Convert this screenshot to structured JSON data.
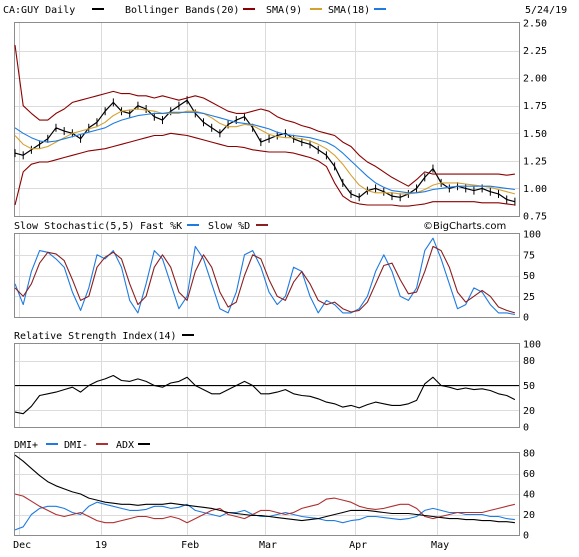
{
  "header": {
    "symbol": "CA:GUY Daily",
    "bb_label": "Bollinger Bands(20)",
    "sma9_label": "SMA(9)",
    "sma18_label": "SMA(18)",
    "date": "5/24/19"
  },
  "colors": {
    "price": "#000000",
    "bollinger": "#8b0000",
    "sma9": "#d4a030",
    "sma18": "#1e7be0",
    "fast": "#1e7be0",
    "slow": "#8b2020",
    "rsi": "#000000",
    "dmi_plus": "#1e7be0",
    "dmi_minus": "#b03030",
    "adx": "#000000"
  },
  "x_axis": {
    "labels": [
      "Dec",
      "19",
      "Feb",
      "Mar",
      "Apr",
      "May"
    ],
    "label_days": [
      1,
      21,
      42,
      61,
      83,
      103
    ]
  },
  "watermark": "©BigCharts.com",
  "chart_data": [
    {
      "type": "line",
      "panel": "price",
      "ylim": [
        0.75,
        2.5
      ],
      "yticks": [
        "2.50",
        "2.25",
        "2.00",
        "1.75",
        "1.50",
        "1.25",
        "1.00",
        "0.75"
      ],
      "ytick_values": [
        2.5,
        2.25,
        2.0,
        1.75,
        1.5,
        1.25,
        1.0,
        0.75
      ],
      "x": [
        0,
        2,
        4,
        6,
        8,
        10,
        12,
        14,
        16,
        18,
        20,
        22,
        24,
        26,
        28,
        30,
        32,
        34,
        36,
        38,
        40,
        42,
        44,
        46,
        48,
        50,
        52,
        54,
        56,
        58,
        60,
        62,
        64,
        66,
        68,
        70,
        72,
        74,
        76,
        78,
        80,
        82,
        84,
        86,
        88,
        90,
        92,
        94,
        96,
        98,
        100,
        102,
        104,
        106,
        108,
        110,
        112,
        114,
        116,
        118,
        120,
        122
      ],
      "series": [
        {
          "name": "CA:GUY Daily",
          "values": [
            1.32,
            1.3,
            1.35,
            1.4,
            1.45,
            1.55,
            1.52,
            1.5,
            1.45,
            1.55,
            1.6,
            1.7,
            1.78,
            1.7,
            1.68,
            1.75,
            1.72,
            1.65,
            1.62,
            1.7,
            1.75,
            1.8,
            1.68,
            1.6,
            1.55,
            1.5,
            1.58,
            1.62,
            1.65,
            1.55,
            1.42,
            1.45,
            1.48,
            1.5,
            1.45,
            1.42,
            1.4,
            1.35,
            1.3,
            1.2,
            1.05,
            0.95,
            0.92,
            0.98,
            1.0,
            0.97,
            0.93,
            0.92,
            0.95,
            1.0,
            1.1,
            1.18,
            1.05,
            1.0,
            1.02,
            1.0,
            0.98,
            1.0,
            0.97,
            0.95,
            0.9,
            0.88
          ]
        },
        {
          "name": "Bollinger Upper",
          "values": [
            2.3,
            1.75,
            1.68,
            1.62,
            1.62,
            1.68,
            1.72,
            1.78,
            1.8,
            1.82,
            1.84,
            1.86,
            1.88,
            1.86,
            1.86,
            1.84,
            1.84,
            1.82,
            1.84,
            1.82,
            1.8,
            1.82,
            1.84,
            1.82,
            1.78,
            1.74,
            1.7,
            1.68,
            1.68,
            1.7,
            1.72,
            1.7,
            1.65,
            1.62,
            1.6,
            1.57,
            1.55,
            1.52,
            1.5,
            1.48,
            1.42,
            1.38,
            1.3,
            1.24,
            1.2,
            1.15,
            1.1,
            1.06,
            1.02,
            1.08,
            1.15,
            1.13,
            1.13,
            1.13,
            1.13,
            1.13,
            1.13,
            1.13,
            1.13,
            1.13,
            1.12,
            1.13
          ]
        },
        {
          "name": "Bollinger Lower",
          "values": [
            0.85,
            1.15,
            1.22,
            1.24,
            1.24,
            1.26,
            1.28,
            1.3,
            1.32,
            1.34,
            1.35,
            1.36,
            1.38,
            1.4,
            1.42,
            1.44,
            1.46,
            1.48,
            1.48,
            1.5,
            1.49,
            1.48,
            1.46,
            1.44,
            1.42,
            1.4,
            1.38,
            1.38,
            1.37,
            1.35,
            1.34,
            1.33,
            1.33,
            1.33,
            1.32,
            1.3,
            1.28,
            1.25,
            1.2,
            1.05,
            0.93,
            0.88,
            0.86,
            0.85,
            0.85,
            0.85,
            0.85,
            0.84,
            0.84,
            0.85,
            0.86,
            0.88,
            0.88,
            0.88,
            0.88,
            0.88,
            0.88,
            0.87,
            0.87,
            0.87,
            0.86,
            0.85
          ]
        },
        {
          "name": "SMA(9)",
          "values": [
            1.48,
            1.4,
            1.36,
            1.36,
            1.38,
            1.42,
            1.46,
            1.5,
            1.52,
            1.54,
            1.56,
            1.6,
            1.66,
            1.7,
            1.71,
            1.72,
            1.71,
            1.7,
            1.68,
            1.68,
            1.68,
            1.7,
            1.7,
            1.68,
            1.64,
            1.59,
            1.56,
            1.56,
            1.58,
            1.57,
            1.53,
            1.49,
            1.47,
            1.46,
            1.46,
            1.45,
            1.43,
            1.4,
            1.36,
            1.3,
            1.22,
            1.12,
            1.03,
            0.98,
            0.96,
            0.96,
            0.96,
            0.95,
            0.95,
            0.96,
            0.99,
            1.03,
            1.05,
            1.05,
            1.05,
            1.04,
            1.03,
            1.02,
            1.01,
            0.99,
            0.97,
            0.95
          ]
        },
        {
          "name": "SMA(18)",
          "values": [
            1.55,
            1.5,
            1.46,
            1.43,
            1.42,
            1.43,
            1.45,
            1.47,
            1.49,
            1.51,
            1.53,
            1.55,
            1.59,
            1.62,
            1.64,
            1.66,
            1.67,
            1.68,
            1.68,
            1.69,
            1.69,
            1.69,
            1.69,
            1.68,
            1.66,
            1.64,
            1.62,
            1.6,
            1.59,
            1.58,
            1.56,
            1.54,
            1.51,
            1.49,
            1.48,
            1.47,
            1.46,
            1.44,
            1.42,
            1.38,
            1.32,
            1.25,
            1.18,
            1.11,
            1.05,
            1.01,
            0.98,
            0.97,
            0.96,
            0.96,
            0.97,
            0.99,
            1.0,
            1.01,
            1.02,
            1.02,
            1.02,
            1.02,
            1.02,
            1.01,
            1.0,
            0.99
          ]
        }
      ]
    },
    {
      "type": "line",
      "panel": "stochastic",
      "title": "Slow Stochastic(5,5)",
      "legend": [
        "Fast %K",
        "Slow %D"
      ],
      "ylim": [
        0,
        100
      ],
      "yticks": [
        "100",
        "75",
        "50",
        "25",
        "0"
      ],
      "ytick_values": [
        100,
        75,
        50,
        25,
        0
      ],
      "x": [
        0,
        2,
        4,
        6,
        8,
        10,
        12,
        14,
        16,
        18,
        20,
        22,
        24,
        26,
        28,
        30,
        32,
        34,
        36,
        38,
        40,
        42,
        44,
        46,
        48,
        50,
        52,
        54,
        56,
        58,
        60,
        62,
        64,
        66,
        68,
        70,
        72,
        74,
        76,
        78,
        80,
        82,
        84,
        86,
        88,
        90,
        92,
        94,
        96,
        98,
        100,
        102,
        104,
        106,
        108,
        110,
        112,
        114,
        116,
        118,
        120,
        122
      ],
      "series": [
        {
          "name": "Fast %K",
          "values": [
            40,
            15,
            55,
            80,
            78,
            70,
            60,
            30,
            8,
            35,
            75,
            70,
            80,
            60,
            20,
            5,
            40,
            80,
            70,
            40,
            10,
            25,
            85,
            70,
            40,
            10,
            5,
            30,
            75,
            80,
            60,
            30,
            15,
            25,
            60,
            55,
            25,
            5,
            20,
            15,
            5,
            5,
            10,
            25,
            55,
            75,
            55,
            25,
            20,
            35,
            80,
            95,
            70,
            40,
            10,
            15,
            35,
            30,
            15,
            5,
            5,
            3
          ]
        },
        {
          "name": "Slow %D",
          "values": [
            35,
            25,
            40,
            65,
            78,
            76,
            68,
            45,
            20,
            25,
            60,
            72,
            78,
            70,
            40,
            15,
            25,
            60,
            75,
            60,
            30,
            20,
            55,
            75,
            60,
            30,
            12,
            18,
            50,
            75,
            70,
            45,
            25,
            20,
            42,
            55,
            40,
            20,
            15,
            18,
            10,
            6,
            8,
            18,
            40,
            62,
            65,
            45,
            28,
            30,
            55,
            85,
            80,
            60,
            30,
            18,
            25,
            32,
            25,
            12,
            8,
            5
          ]
        }
      ]
    },
    {
      "type": "line",
      "panel": "rsi",
      "title": "Relative Strength Index(14)",
      "ylim": [
        0,
        100
      ],
      "yticks": [
        "100",
        "80",
        "50",
        "20",
        "0"
      ],
      "ytick_values": [
        100,
        80,
        50,
        20,
        0
      ],
      "reference_line": 50,
      "x": [
        0,
        2,
        4,
        6,
        8,
        10,
        12,
        14,
        16,
        18,
        20,
        22,
        24,
        26,
        28,
        30,
        32,
        34,
        36,
        38,
        40,
        42,
        44,
        46,
        48,
        50,
        52,
        54,
        56,
        58,
        60,
        62,
        64,
        66,
        68,
        70,
        72,
        74,
        76,
        78,
        80,
        82,
        84,
        86,
        88,
        90,
        92,
        94,
        96,
        98,
        100,
        102,
        104,
        106,
        108,
        110,
        112,
        114,
        116,
        118,
        120,
        122
      ],
      "series": [
        {
          "name": "RSI(14)",
          "values": [
            18,
            16,
            25,
            38,
            40,
            42,
            45,
            48,
            42,
            50,
            55,
            58,
            62,
            56,
            55,
            58,
            55,
            50,
            48,
            53,
            55,
            60,
            50,
            45,
            40,
            40,
            45,
            50,
            55,
            50,
            40,
            40,
            42,
            45,
            40,
            38,
            37,
            34,
            30,
            28,
            24,
            26,
            23,
            27,
            30,
            28,
            26,
            26,
            28,
            32,
            52,
            60,
            50,
            48,
            45,
            47,
            45,
            46,
            44,
            40,
            38,
            33
          ]
        }
      ]
    },
    {
      "type": "line",
      "panel": "dmi",
      "legend": [
        "DMI+",
        "DMI-",
        "ADX"
      ],
      "ylim": [
        0,
        80
      ],
      "yticks": [
        "80",
        "60",
        "40",
        "20",
        "0"
      ],
      "ytick_values": [
        80,
        60,
        40,
        20,
        0
      ],
      "x": [
        0,
        2,
        4,
        6,
        8,
        10,
        12,
        14,
        16,
        18,
        20,
        22,
        24,
        26,
        28,
        30,
        32,
        34,
        36,
        38,
        40,
        42,
        44,
        46,
        48,
        50,
        52,
        54,
        56,
        58,
        60,
        62,
        64,
        66,
        68,
        70,
        72,
        74,
        76,
        78,
        80,
        82,
        84,
        86,
        88,
        90,
        92,
        94,
        96,
        98,
        100,
        102,
        104,
        106,
        108,
        110,
        112,
        114,
        116,
        118,
        120,
        122
      ],
      "series": [
        {
          "name": "DMI+",
          "values": [
            5,
            8,
            20,
            26,
            28,
            28,
            26,
            22,
            20,
            28,
            32,
            30,
            28,
            26,
            24,
            24,
            25,
            28,
            28,
            26,
            27,
            30,
            24,
            22,
            20,
            18,
            22,
            22,
            24,
            20,
            18,
            18,
            20,
            22,
            20,
            18,
            17,
            16,
            14,
            14,
            12,
            14,
            15,
            18,
            18,
            17,
            16,
            15,
            16,
            18,
            24,
            26,
            24,
            22,
            22,
            20,
            20,
            20,
            18,
            18,
            16,
            15
          ]
        },
        {
          "name": "DMI-",
          "values": [
            40,
            38,
            33,
            28,
            24,
            20,
            18,
            20,
            22,
            18,
            14,
            12,
            12,
            14,
            16,
            18,
            18,
            16,
            16,
            18,
            16,
            12,
            16,
            20,
            24,
            26,
            20,
            18,
            16,
            20,
            24,
            24,
            22,
            20,
            22,
            26,
            28,
            30,
            35,
            36,
            34,
            32,
            28,
            26,
            25,
            26,
            28,
            30,
            30,
            26,
            18,
            16,
            18,
            20,
            22,
            22,
            22,
            22,
            24,
            26,
            28,
            30
          ]
        },
        {
          "name": "ADX",
          "values": [
            78,
            72,
            65,
            58,
            52,
            48,
            45,
            42,
            40,
            36,
            34,
            32,
            31,
            30,
            30,
            29,
            30,
            30,
            30,
            31,
            30,
            29,
            28,
            27,
            26,
            24,
            22,
            21,
            20,
            19,
            19,
            18,
            17,
            16,
            15,
            14,
            15,
            16,
            18,
            20,
            22,
            24,
            24,
            24,
            23,
            22,
            21,
            21,
            21,
            20,
            19,
            18,
            17,
            16,
            16,
            15,
            15,
            14,
            14,
            13,
            13,
            12
          ]
        }
      ]
    }
  ]
}
